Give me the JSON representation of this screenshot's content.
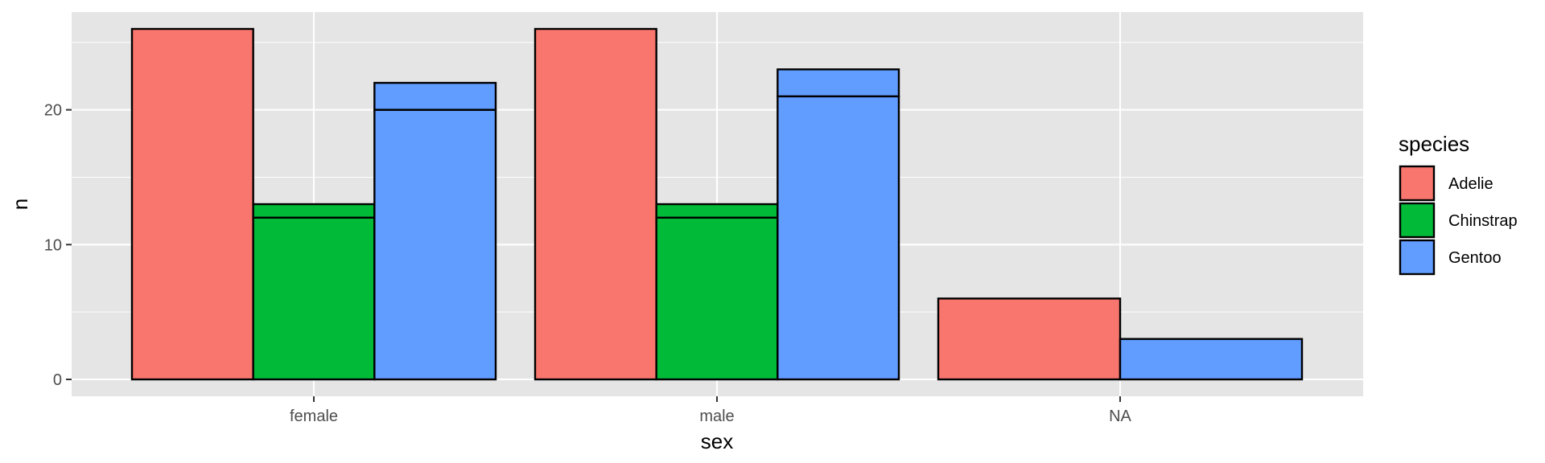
{
  "chart_data": {
    "type": "bar",
    "title": "",
    "xlabel": "sex",
    "ylabel": "n",
    "categories": [
      "female",
      "male",
      "NA"
    ],
    "ylim": [
      0,
      27.3
    ],
    "y_ticks": [
      0,
      10,
      20
    ],
    "grid": true,
    "legend": {
      "title": "species",
      "position": "right"
    },
    "series": [
      {
        "name": "Adelie",
        "color": "#F8766D",
        "values": [
          26,
          26,
          6
        ]
      },
      {
        "name": "Chinstrap",
        "color": "#00BA38",
        "values": [
          13,
          13,
          null
        ]
      },
      {
        "name": "Gentoo",
        "color": "#619CFF",
        "values": [
          22,
          23,
          3
        ]
      }
    ],
    "bars": [
      {
        "category": "female",
        "series": "Adelie",
        "segments": [
          26
        ]
      },
      {
        "category": "female",
        "series": "Chinstrap",
        "segments": [
          12,
          1
        ]
      },
      {
        "category": "female",
        "series": "Gentoo",
        "segments": [
          20,
          2
        ]
      },
      {
        "category": "male",
        "series": "Adelie",
        "segments": [
          26
        ]
      },
      {
        "category": "male",
        "series": "Chinstrap",
        "segments": [
          12,
          1
        ]
      },
      {
        "category": "male",
        "series": "Gentoo",
        "segments": [
          21,
          2
        ]
      },
      {
        "category": "NA",
        "series": "Adelie",
        "segments": [
          6
        ]
      },
      {
        "category": "NA",
        "series": "Gentoo",
        "segments": [
          3
        ]
      }
    ]
  }
}
